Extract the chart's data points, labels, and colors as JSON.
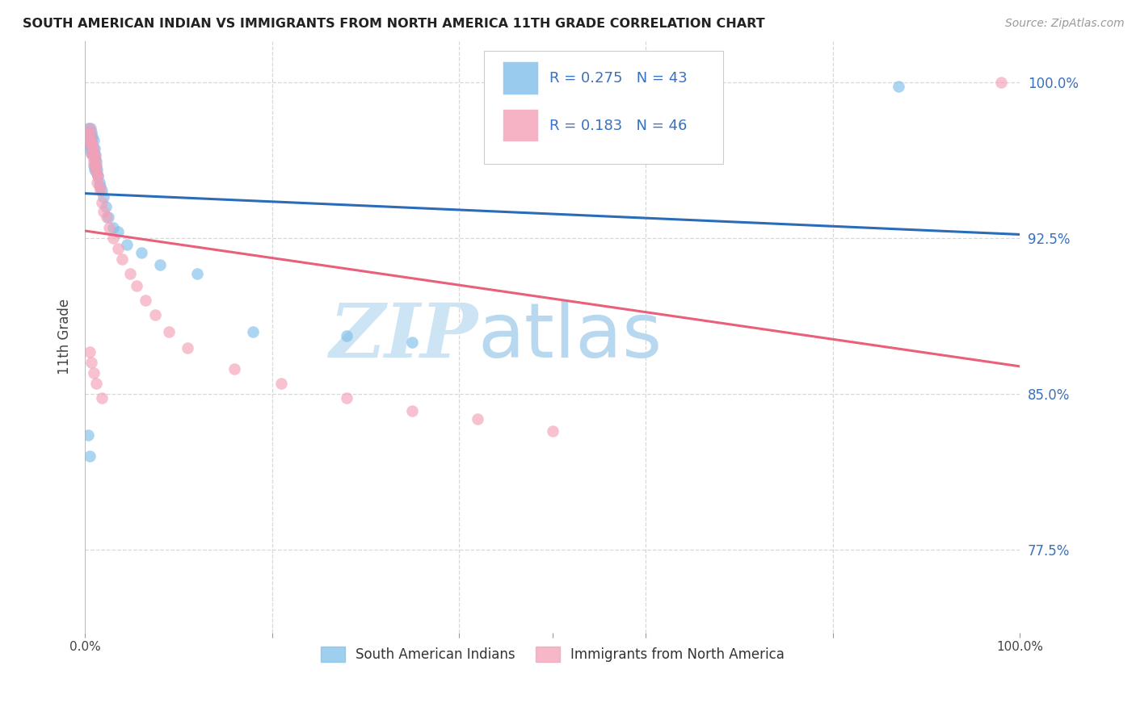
{
  "title": "SOUTH AMERICAN INDIAN VS IMMIGRANTS FROM NORTH AMERICA 11TH GRADE CORRELATION CHART",
  "source": "Source: ZipAtlas.com",
  "ylabel": "11th Grade",
  "ytick_vals": [
    0.775,
    0.85,
    0.925,
    1.0
  ],
  "ytick_labels": [
    "77.5%",
    "85.0%",
    "92.5%",
    "100.0%"
  ],
  "xlim": [
    0.0,
    1.0
  ],
  "ylim": [
    0.735,
    1.02
  ],
  "blue_color": "#7fbfea",
  "pink_color": "#f4a0b8",
  "blue_line_color": "#2b6cb8",
  "pink_line_color": "#e8607a",
  "legend_R1": "0.275",
  "legend_N1": "43",
  "legend_R2": "0.183",
  "legend_N2": "46",
  "legend_text_color": "#3a70c0",
  "watermark_zip": "ZIP",
  "watermark_atlas": "atlas",
  "watermark_color_zip": "#cde4f5",
  "watermark_color_atlas": "#b8d8f0",
  "background_color": "#ffffff",
  "grid_color": "#d8d8d8",
  "blue_x": [
    0.002,
    0.003,
    0.004,
    0.005,
    0.005,
    0.006,
    0.006,
    0.006,
    0.007,
    0.007,
    0.007,
    0.008,
    0.008,
    0.009,
    0.009,
    0.009,
    0.01,
    0.01,
    0.01,
    0.011,
    0.011,
    0.012,
    0.012,
    0.013,
    0.014,
    0.015,
    0.016,
    0.018,
    0.02,
    0.022,
    0.025,
    0.03,
    0.035,
    0.045,
    0.06,
    0.08,
    0.12,
    0.18,
    0.28,
    0.35,
    0.003,
    0.005,
    0.87
  ],
  "blue_y": [
    0.97,
    0.978,
    0.975,
    0.972,
    0.968,
    0.978,
    0.974,
    0.97,
    0.976,
    0.972,
    0.966,
    0.974,
    0.968,
    0.972,
    0.966,
    0.96,
    0.968,
    0.963,
    0.958,
    0.965,
    0.96,
    0.962,
    0.957,
    0.958,
    0.955,
    0.952,
    0.95,
    0.948,
    0.945,
    0.94,
    0.935,
    0.93,
    0.928,
    0.922,
    0.918,
    0.912,
    0.908,
    0.88,
    0.878,
    0.875,
    0.83,
    0.82,
    0.998
  ],
  "pink_x": [
    0.003,
    0.004,
    0.005,
    0.006,
    0.006,
    0.007,
    0.007,
    0.008,
    0.008,
    0.009,
    0.009,
    0.01,
    0.01,
    0.011,
    0.011,
    0.012,
    0.013,
    0.013,
    0.014,
    0.015,
    0.016,
    0.018,
    0.02,
    0.023,
    0.026,
    0.03,
    0.035,
    0.04,
    0.048,
    0.055,
    0.065,
    0.075,
    0.09,
    0.11,
    0.16,
    0.21,
    0.28,
    0.35,
    0.42,
    0.5,
    0.005,
    0.007,
    0.009,
    0.012,
    0.018,
    0.98
  ],
  "pink_y": [
    0.975,
    0.972,
    0.978,
    0.975,
    0.97,
    0.972,
    0.966,
    0.97,
    0.965,
    0.968,
    0.962,
    0.965,
    0.96,
    0.963,
    0.958,
    0.96,
    0.956,
    0.952,
    0.955,
    0.95,
    0.948,
    0.942,
    0.938,
    0.935,
    0.93,
    0.925,
    0.92,
    0.915,
    0.908,
    0.902,
    0.895,
    0.888,
    0.88,
    0.872,
    0.862,
    0.855,
    0.848,
    0.842,
    0.838,
    0.832,
    0.87,
    0.865,
    0.86,
    0.855,
    0.848,
    1.0
  ],
  "xtick_positions": [
    0.0,
    0.2,
    0.4,
    0.5,
    0.6,
    0.8,
    1.0
  ],
  "xtick_show": [
    0.0,
    1.0
  ]
}
